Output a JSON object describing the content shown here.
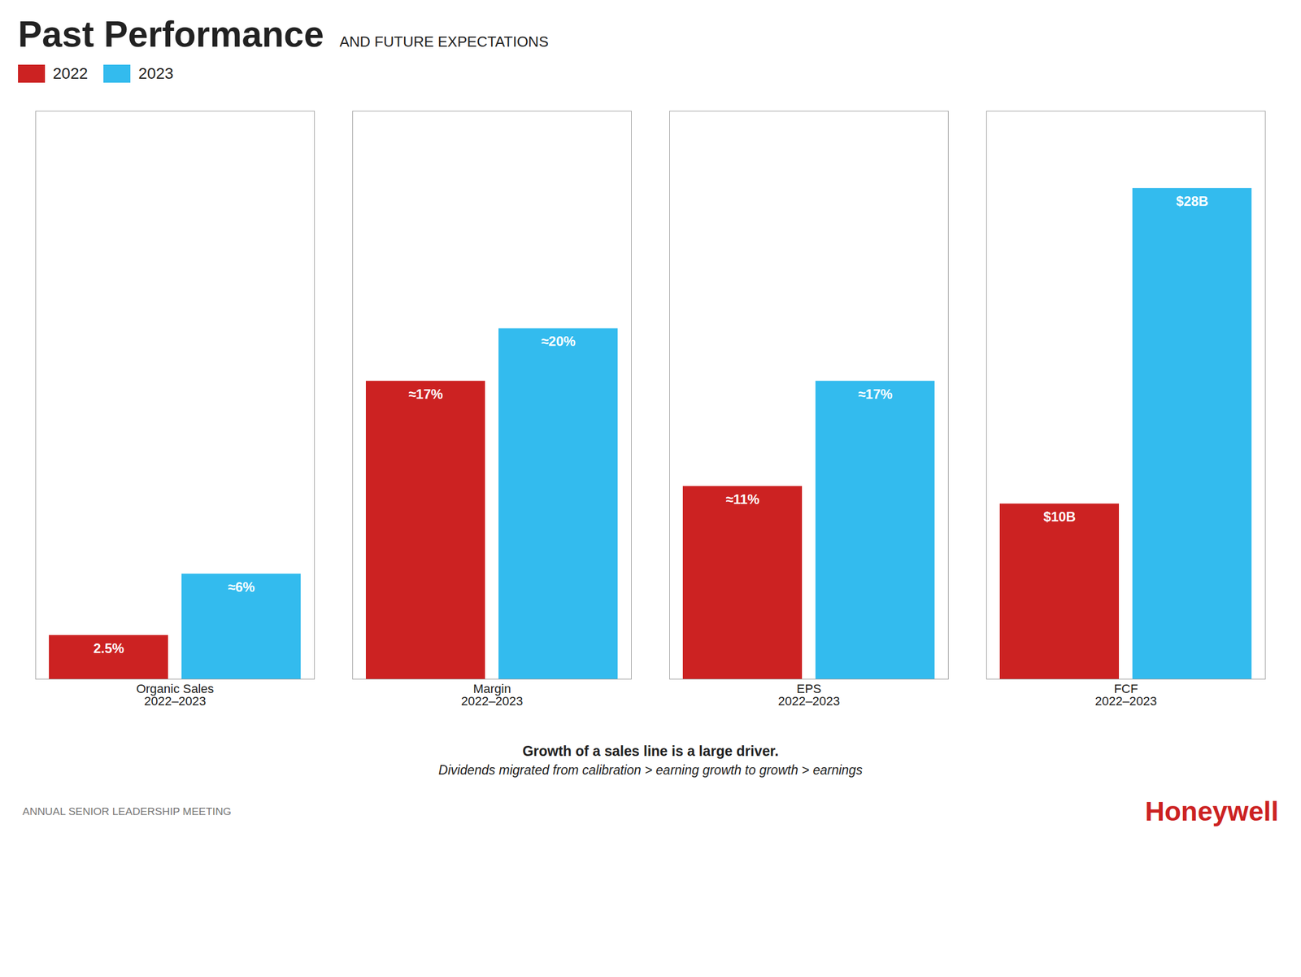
{
  "chart_data": {
    "type": "bar",
    "title": "Past Performance",
    "subtitle": "AND FUTURE EXPECTATIONS",
    "categories": [
      "Organic Sales\n2022–2023",
      "Margin\n2022–2023",
      "EPS\n2022–2023",
      "FCF\n2022–2023"
    ],
    "series": [
      {
        "name": "2022",
        "color": "#cc2222",
        "values": [
          2.5,
          17.0,
          11.0,
          10.0
        ],
        "value_labels": [
          "2.5%",
          "≈17%",
          "≈11%",
          "$10B"
        ]
      },
      {
        "name": "2023",
        "color": "#33bbee",
        "values": [
          6.0,
          20.0,
          17.0,
          28.0
        ],
        "value_labels": [
          "≈6%",
          "≈20%",
          "≈17%",
          "$28B"
        ]
      }
    ],
    "ylim": [
      0,
      32.4
    ],
    "tick_labels": "x",
    "grid": false,
    "data_labels": true,
    "legend": "top left",
    "annotations": [
      "Growth of a sales line is a large driver.",
      "Dividends migrated from calibration > earning growth to growth > earnings",
      "ANNUAL SENIOR LEADERSHIP MEETING",
      "Honeywell"
    ]
  }
}
